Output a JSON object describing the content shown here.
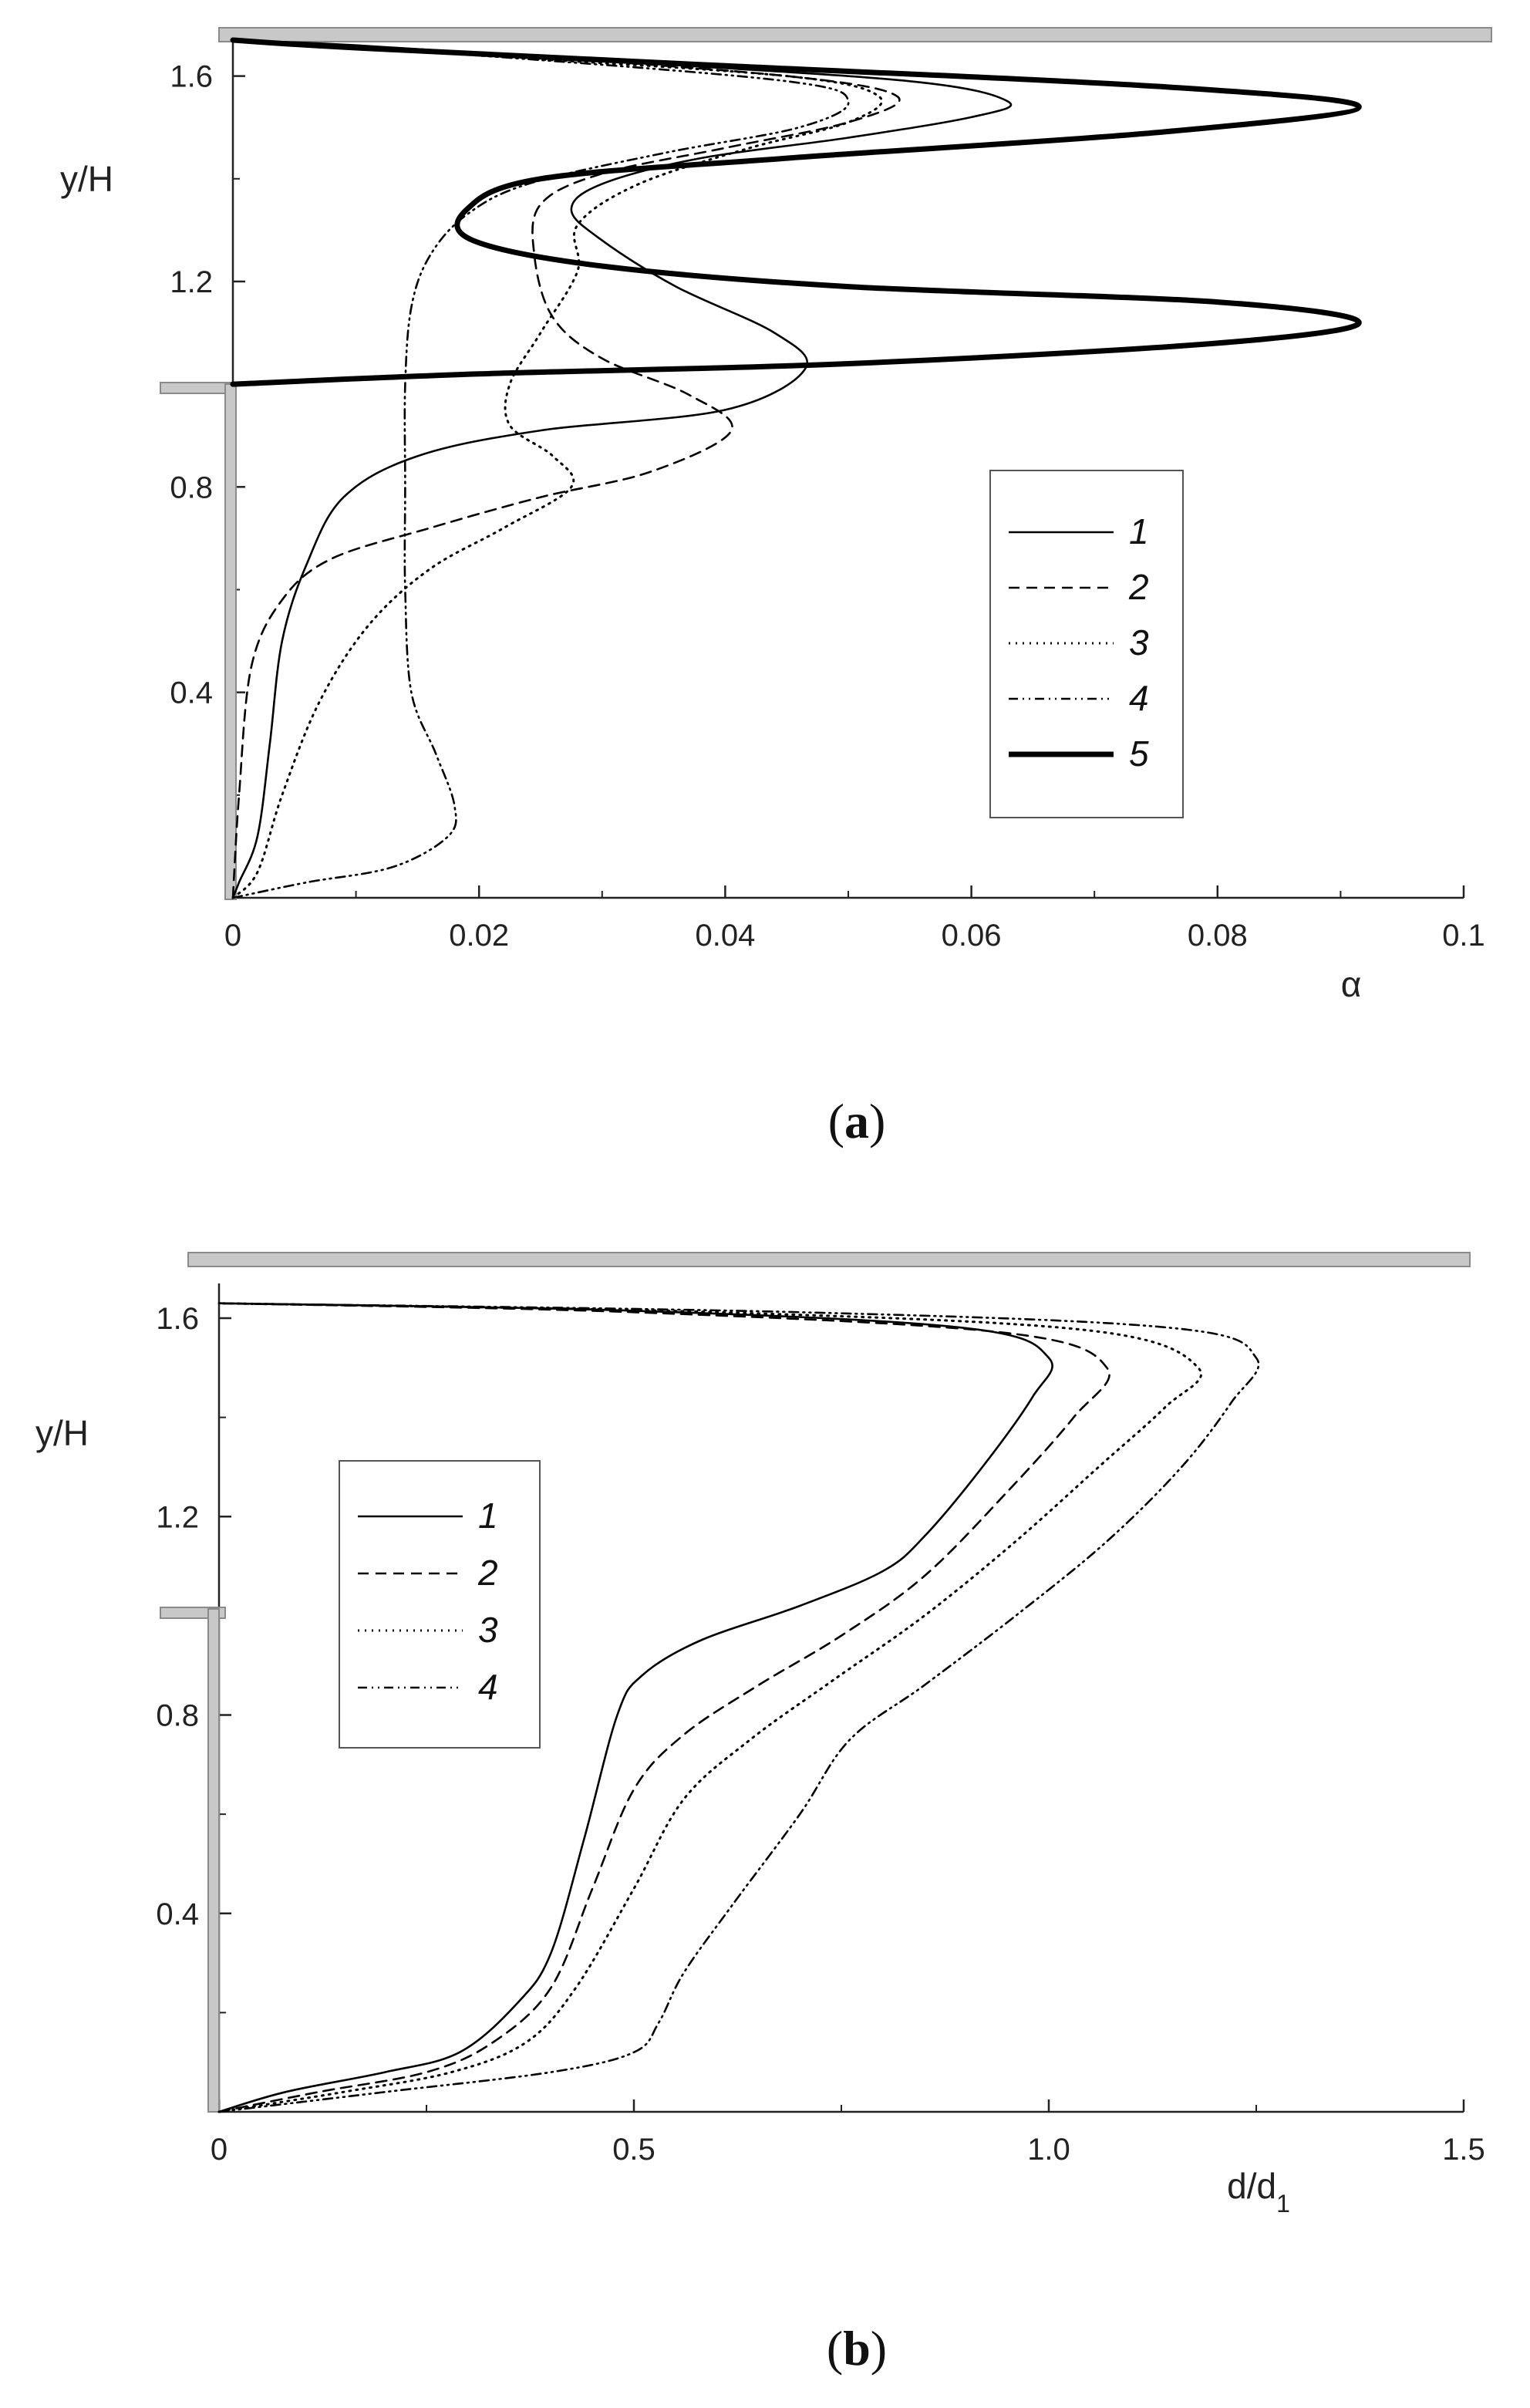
{
  "panel_labels": {
    "a": "a",
    "b": "b"
  },
  "chart_data": [
    {
      "type": "line",
      "panel": "a",
      "xlabel": "α",
      "ylabel": "y/H",
      "xlim": [
        0,
        0.1
      ],
      "ylim": [
        0,
        1.67
      ],
      "x_ticks": [
        "0",
        "0.02",
        "0.04",
        "0.06",
        "0.08",
        "0.1"
      ],
      "y_ticks": [
        "0.4",
        "0.8",
        "1.2",
        "1.6"
      ],
      "legend": {
        "placement": "lower-right",
        "entries": [
          "1",
          "2",
          "3",
          "4",
          "5"
        ]
      },
      "series": [
        {
          "name": "1",
          "points": [
            [
              0.0,
              0.0
            ],
            [
              0.0005,
              0.03
            ],
            [
              0.002,
              0.12
            ],
            [
              0.003,
              0.3
            ],
            [
              0.004,
              0.5
            ],
            [
              0.006,
              0.65
            ],
            [
              0.009,
              0.78
            ],
            [
              0.015,
              0.86
            ],
            [
              0.025,
              0.91
            ],
            [
              0.04,
              0.95
            ],
            [
              0.0465,
              1.03
            ],
            [
              0.044,
              1.1
            ],
            [
              0.036,
              1.19
            ],
            [
              0.03,
              1.28
            ],
            [
              0.0275,
              1.34
            ],
            [
              0.03,
              1.39
            ],
            [
              0.038,
              1.44
            ],
            [
              0.05,
              1.48
            ],
            [
              0.06,
              1.52
            ],
            [
              0.063,
              1.55
            ],
            [
              0.055,
              1.59
            ],
            [
              0.03,
              1.63
            ],
            [
              0.01,
              1.66
            ],
            [
              0.0,
              1.67
            ]
          ]
        },
        {
          "name": "2",
          "points": [
            [
              0.0,
              0.0
            ],
            [
              0.0005,
              0.2
            ],
            [
              0.0015,
              0.45
            ],
            [
              0.004,
              0.58
            ],
            [
              0.008,
              0.66
            ],
            [
              0.016,
              0.72
            ],
            [
              0.025,
              0.78
            ],
            [
              0.034,
              0.83
            ],
            [
              0.0405,
              0.91
            ],
            [
              0.037,
              0.98
            ],
            [
              0.03,
              1.05
            ],
            [
              0.026,
              1.13
            ],
            [
              0.0245,
              1.25
            ],
            [
              0.025,
              1.35
            ],
            [
              0.03,
              1.41
            ],
            [
              0.04,
              1.46
            ],
            [
              0.05,
              1.51
            ],
            [
              0.054,
              1.56
            ],
            [
              0.045,
              1.6
            ],
            [
              0.02,
              1.645
            ],
            [
              0.0,
              1.67
            ]
          ]
        },
        {
          "name": "3",
          "points": [
            [
              0.0,
              0.0
            ],
            [
              0.002,
              0.05
            ],
            [
              0.004,
              0.2
            ],
            [
              0.007,
              0.38
            ],
            [
              0.011,
              0.53
            ],
            [
              0.016,
              0.64
            ],
            [
              0.022,
              0.72
            ],
            [
              0.0275,
              0.8
            ],
            [
              0.026,
              0.86
            ],
            [
              0.0225,
              0.92
            ],
            [
              0.0225,
              1.0
            ],
            [
              0.025,
              1.1
            ],
            [
              0.028,
              1.22
            ],
            [
              0.028,
              1.31
            ],
            [
              0.033,
              1.39
            ],
            [
              0.042,
              1.46
            ],
            [
              0.05,
              1.51
            ],
            [
              0.0525,
              1.56
            ],
            [
              0.045,
              1.6
            ],
            [
              0.02,
              1.64
            ],
            [
              0.0,
              1.67
            ]
          ]
        },
        {
          "name": "4",
          "points": [
            [
              0.0,
              0.0
            ],
            [
              0.006,
              0.03
            ],
            [
              0.013,
              0.06
            ],
            [
              0.0175,
              0.12
            ],
            [
              0.018,
              0.18
            ],
            [
              0.0165,
              0.28
            ],
            [
              0.0145,
              0.4
            ],
            [
              0.014,
              0.6
            ],
            [
              0.014,
              0.8
            ],
            [
              0.014,
              1.0
            ],
            [
              0.0145,
              1.15
            ],
            [
              0.016,
              1.25
            ],
            [
              0.019,
              1.33
            ],
            [
              0.024,
              1.39
            ],
            [
              0.035,
              1.45
            ],
            [
              0.046,
              1.5
            ],
            [
              0.05,
              1.55
            ],
            [
              0.045,
              1.59
            ],
            [
              0.02,
              1.64
            ],
            [
              0.0,
              1.67
            ]
          ]
        },
        {
          "name": "5",
          "points": [
            [
              0.0,
              1.0
            ],
            [
              0.02,
              1.02
            ],
            [
              0.05,
              1.04
            ],
            [
              0.08,
              1.08
            ],
            [
              0.0915,
              1.12
            ],
            [
              0.08,
              1.16
            ],
            [
              0.05,
              1.19
            ],
            [
              0.03,
              1.23
            ],
            [
              0.0195,
              1.28
            ],
            [
              0.019,
              1.34
            ],
            [
              0.025,
              1.4
            ],
            [
              0.045,
              1.44
            ],
            [
              0.075,
              1.49
            ],
            [
              0.0915,
              1.54
            ],
            [
              0.075,
              1.58
            ],
            [
              0.04,
              1.62
            ],
            [
              0.01,
              1.655
            ],
            [
              0.0,
              1.67
            ]
          ]
        }
      ]
    },
    {
      "type": "line",
      "panel": "b",
      "xlabel": "d/d",
      "xlabel_subscript": "1",
      "ylabel": "y/H",
      "xlim": [
        0,
        1.5
      ],
      "ylim": [
        0,
        1.67
      ],
      "x_ticks": [
        "0",
        "0.5",
        "1.0",
        "1.5"
      ],
      "y_ticks": [
        "0.4",
        "0.8",
        "1.2",
        "1.6"
      ],
      "legend": {
        "placement": "upper-left",
        "entries": [
          "1",
          "2",
          "3",
          "4"
        ]
      },
      "series": [
        {
          "name": "1",
          "points": [
            [
              0.0,
              0.0
            ],
            [
              0.08,
              0.04
            ],
            [
              0.2,
              0.08
            ],
            [
              0.29,
              0.12
            ],
            [
              0.36,
              0.22
            ],
            [
              0.4,
              0.32
            ],
            [
              0.44,
              0.55
            ],
            [
              0.48,
              0.8
            ],
            [
              0.51,
              0.88
            ],
            [
              0.58,
              0.95
            ],
            [
              0.7,
              1.02
            ],
            [
              0.8,
              1.09
            ],
            [
              0.85,
              1.16
            ],
            [
              0.92,
              1.3
            ],
            [
              0.98,
              1.44
            ],
            [
              1.0,
              1.52
            ],
            [
              0.9,
              1.58
            ],
            [
              0.5,
              1.615
            ],
            [
              0.0,
              1.63
            ]
          ]
        },
        {
          "name": "2",
          "points": [
            [
              0.0,
              0.0
            ],
            [
              0.12,
              0.04
            ],
            [
              0.25,
              0.08
            ],
            [
              0.33,
              0.14
            ],
            [
              0.4,
              0.25
            ],
            [
              0.45,
              0.45
            ],
            [
              0.5,
              0.65
            ],
            [
              0.56,
              0.76
            ],
            [
              0.65,
              0.86
            ],
            [
              0.75,
              0.96
            ],
            [
              0.85,
              1.08
            ],
            [
              0.95,
              1.25
            ],
            [
              1.03,
              1.4
            ],
            [
              1.07,
              1.5
            ],
            [
              0.95,
              1.57
            ],
            [
              0.5,
              1.612
            ],
            [
              0.0,
              1.63
            ]
          ]
        },
        {
          "name": "3",
          "points": [
            [
              0.0,
              0.0
            ],
            [
              0.15,
              0.04
            ],
            [
              0.28,
              0.08
            ],
            [
              0.37,
              0.14
            ],
            [
              0.43,
              0.25
            ],
            [
              0.5,
              0.45
            ],
            [
              0.56,
              0.63
            ],
            [
              0.64,
              0.75
            ],
            [
              0.74,
              0.87
            ],
            [
              0.85,
              1.0
            ],
            [
              0.96,
              1.15
            ],
            [
              1.06,
              1.3
            ],
            [
              1.14,
              1.42
            ],
            [
              1.18,
              1.5
            ],
            [
              1.05,
              1.575
            ],
            [
              0.6,
              1.612
            ],
            [
              0.0,
              1.63
            ]
          ]
        },
        {
          "name": "4",
          "points": [
            [
              0.0,
              0.0
            ],
            [
              0.2,
              0.04
            ],
            [
              0.4,
              0.08
            ],
            [
              0.5,
              0.12
            ],
            [
              0.53,
              0.18
            ],
            [
              0.56,
              0.28
            ],
            [
              0.62,
              0.42
            ],
            [
              0.7,
              0.6
            ],
            [
              0.76,
              0.75
            ],
            [
              0.85,
              0.86
            ],
            [
              0.96,
              1.0
            ],
            [
              1.07,
              1.15
            ],
            [
              1.16,
              1.3
            ],
            [
              1.22,
              1.43
            ],
            [
              1.25,
              1.52
            ],
            [
              1.15,
              1.58
            ],
            [
              0.7,
              1.612
            ],
            [
              0.0,
              1.63
            ]
          ]
        }
      ]
    }
  ]
}
